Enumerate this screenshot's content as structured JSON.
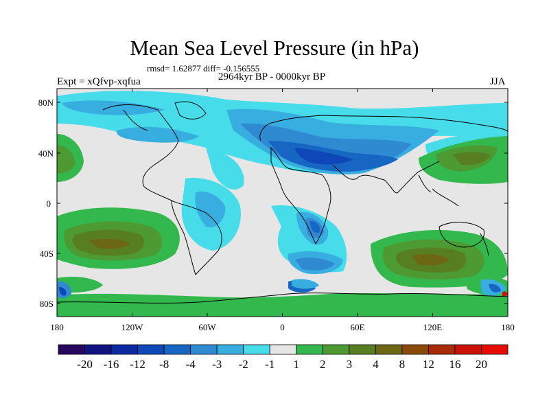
{
  "title": "Mean Sea Level Pressure (in hPa)",
  "stats": "rmsd= 1.62877 diff= -0.156555",
  "period": "2964kyr BP - 0000kyr BP",
  "experiment": "Expt = xQfvp-xqfua",
  "season": "JJA",
  "lat_ticks": [
    "80N",
    "40N",
    "0",
    "40S",
    "80S"
  ],
  "lon_ticks": [
    "180",
    "120W",
    "60W",
    "0",
    "60E",
    "120E",
    "180"
  ],
  "colorbar": {
    "labels": [
      "-20",
      "-16",
      "-12",
      "-8",
      "-4",
      "-3",
      "-2",
      "-1",
      "1",
      "2",
      "3",
      "4",
      "8",
      "12",
      "16",
      "20"
    ],
    "colors": [
      "#27085e",
      "#11147e",
      "#0c2aa0",
      "#0f46b8",
      "#1766c4",
      "#2f8ad2",
      "#38aee0",
      "#46dcea",
      "#e6e6e6",
      "#33b84e",
      "#4d9a32",
      "#587e22",
      "#6d6612",
      "#8a4a0a",
      "#a82a08",
      "#cc1206",
      "#e60c04"
    ]
  }
}
